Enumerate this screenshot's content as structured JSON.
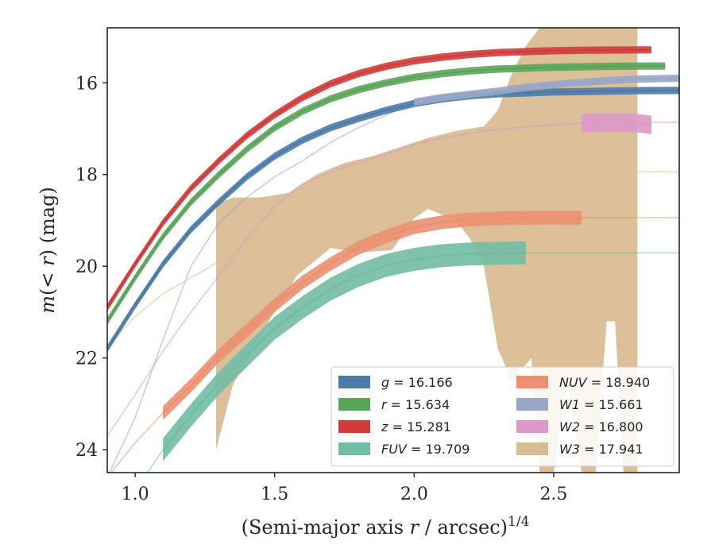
{
  "chart_data": {
    "type": "line",
    "title": "",
    "xlabel": "(Semi-major axis r / arcsec)^1/4",
    "xlabel_main": "(Semi-major axis ",
    "xlabel_r": "r",
    "xlabel_tail": " / arcsec)",
    "xlabel_sup": "1/4",
    "ylabel": "m(<r) (mag)",
    "ylabel_m": "m",
    "ylabel_mid": "(< ",
    "ylabel_r": "r",
    "ylabel_tail": ") (mag)",
    "xlim": [
      0.9,
      2.95
    ],
    "ylim": [
      24.5,
      14.8
    ],
    "y_inverted": true,
    "xticks": [
      1.0,
      1.5,
      2.0,
      2.5
    ],
    "xtick_labels": [
      "1.0",
      "1.5",
      "2.0",
      "2.5"
    ],
    "yticks": [
      16,
      18,
      20,
      22,
      24
    ],
    "ytick_labels": [
      "16",
      "18",
      "20",
      "22",
      "24"
    ],
    "grid": false,
    "legend_position": "lower-right",
    "series": [
      {
        "name": "g = 16.166",
        "sym": "g",
        "eq": "= 16.166",
        "italic": true,
        "color": "#4c7ba8",
        "band_width": 0.08,
        "x": [
          0.9,
          1.0,
          1.1,
          1.2,
          1.3,
          1.4,
          1.5,
          1.6,
          1.7,
          1.8,
          1.9,
          2.0,
          2.1,
          2.2,
          2.3,
          2.4,
          2.5,
          2.6,
          2.7,
          2.8,
          2.95
        ],
        "y": [
          21.8,
          20.85,
          19.95,
          19.2,
          18.6,
          18.05,
          17.6,
          17.25,
          16.98,
          16.78,
          16.6,
          16.45,
          16.35,
          16.28,
          16.24,
          16.22,
          16.2,
          16.19,
          16.18,
          16.17,
          16.166
        ],
        "faint_after": 2.95
      },
      {
        "name": "r = 15.634",
        "sym": "r",
        "eq": "= 15.634",
        "italic": true,
        "color": "#5aa55a",
        "band_width": 0.08,
        "x": [
          0.9,
          1.0,
          1.1,
          1.2,
          1.3,
          1.4,
          1.5,
          1.6,
          1.7,
          1.8,
          1.9,
          2.0,
          2.1,
          2.2,
          2.3,
          2.4,
          2.5,
          2.6,
          2.7,
          2.8,
          2.9
        ],
        "y": [
          21.2,
          20.25,
          19.35,
          18.6,
          18.0,
          17.45,
          16.98,
          16.62,
          16.35,
          16.15,
          16.0,
          15.88,
          15.8,
          15.74,
          15.7,
          15.68,
          15.66,
          15.65,
          15.64,
          15.635,
          15.634
        ],
        "faint_after": 2.95
      },
      {
        "name": "z = 15.281",
        "sym": "z",
        "eq": "= 15.281",
        "italic": true,
        "color": "#d03c3c",
        "band_width": 0.08,
        "x": [
          0.9,
          1.0,
          1.1,
          1.2,
          1.3,
          1.4,
          1.5,
          1.6,
          1.7,
          1.8,
          1.9,
          2.0,
          2.1,
          2.2,
          2.3,
          2.4,
          2.5,
          2.6,
          2.7,
          2.8,
          2.85
        ],
        "y": [
          20.9,
          19.95,
          19.05,
          18.3,
          17.7,
          17.15,
          16.7,
          16.32,
          16.02,
          15.8,
          15.64,
          15.52,
          15.44,
          15.38,
          15.34,
          15.32,
          15.3,
          15.29,
          15.285,
          15.282,
          15.281
        ],
        "faint_after": 2.95
      },
      {
        "name": "FUV = 19.709",
        "sym": "FUV",
        "eq": "= 19.709",
        "italic": true,
        "color": "#72bca4",
        "band_width": 0.25,
        "x": [
          1.1,
          1.2,
          1.3,
          1.4,
          1.5,
          1.6,
          1.7,
          1.8,
          1.9,
          2.0,
          2.1,
          2.2,
          2.3,
          2.4
        ],
        "y": [
          24.0,
          23.25,
          22.55,
          21.95,
          21.35,
          20.9,
          20.5,
          20.2,
          19.98,
          19.85,
          19.77,
          19.73,
          19.715,
          19.709
        ],
        "faint_after": 2.4,
        "faint_x": [
          0.9,
          1.0,
          1.1
        ],
        "faint_y": [
          25.6,
          24.9,
          24.0
        ],
        "tail_y": 19.709
      },
      {
        "name": "NUV = 18.940",
        "sym": "NUV",
        "eq": "= 18.940",
        "italic": true,
        "color": "#eb9070",
        "band_width": 0.15,
        "x": [
          1.1,
          1.2,
          1.3,
          1.4,
          1.5,
          1.6,
          1.7,
          1.8,
          1.9,
          2.0,
          2.1,
          2.2,
          2.3,
          2.4,
          2.5,
          2.6
        ],
        "y": [
          23.2,
          22.6,
          21.95,
          21.4,
          20.85,
          20.35,
          19.95,
          19.6,
          19.35,
          19.15,
          19.04,
          18.98,
          18.955,
          18.945,
          18.942,
          18.94
        ],
        "faint_after": 2.6,
        "faint_x": [
          0.9,
          1.0,
          1.1
        ],
        "faint_y": [
          24.6,
          23.85,
          23.2
        ],
        "tail_y": 18.94
      },
      {
        "name": "W1 = 15.661",
        "sym": "W1",
        "eq": "= 15.661",
        "italic": true,
        "color": "#98a6c8",
        "band_width": 0.08,
        "x": [
          2.0,
          2.1,
          2.2,
          2.3,
          2.4,
          2.5,
          2.6,
          2.7,
          2.8,
          2.95
        ],
        "y": [
          16.42,
          16.32,
          16.25,
          16.18,
          16.1,
          16.04,
          15.99,
          15.95,
          15.92,
          15.9
        ],
        "faint_after": 2.95,
        "faint_x": [
          0.9,
          1.0,
          1.1,
          1.2,
          1.3,
          1.4,
          1.5,
          1.6,
          1.7,
          1.8,
          1.9,
          2.0
        ],
        "faint_y": [
          24.6,
          23.3,
          21.6,
          20.0,
          19.05,
          18.5,
          18.05,
          17.7,
          17.3,
          16.98,
          16.7,
          16.42
        ]
      },
      {
        "name": "W2 = 16.800",
        "sym": "W2",
        "eq": "= 16.800",
        "italic": true,
        "color": "#dc98c8",
        "band_width": 0.2,
        "x": [
          2.6,
          2.7,
          2.8,
          2.85
        ],
        "y": [
          16.88,
          16.86,
          16.88,
          16.92
        ],
        "faint_after": 2.95,
        "faint_x": [
          0.9,
          1.0,
          1.1,
          1.2,
          1.3,
          1.4,
          1.5,
          1.6,
          1.7,
          1.8,
          1.9,
          2.0,
          2.1,
          2.2,
          2.3,
          2.4,
          2.5,
          2.6
        ],
        "faint_y": [
          23.7,
          22.8,
          21.85,
          21.0,
          20.2,
          19.4,
          18.7,
          18.2,
          17.95,
          17.75,
          17.55,
          17.35,
          17.2,
          17.1,
          17.02,
          16.96,
          16.92,
          16.88
        ],
        "tail_y": 16.86
      },
      {
        "name": "W3 = 17.941",
        "sym": "W3",
        "eq": "= 17.941",
        "italic": true,
        "color": "#d8bc94",
        "band_width": 0,
        "is_area": true,
        "upper": [
          [
            1.29,
            18.65
          ],
          [
            1.35,
            18.5
          ],
          [
            1.45,
            18.5
          ],
          [
            1.55,
            18.4
          ],
          [
            1.65,
            18.0
          ],
          [
            1.75,
            17.75
          ],
          [
            1.85,
            17.6
          ],
          [
            1.95,
            17.4
          ],
          [
            2.05,
            17.2
          ],
          [
            2.15,
            17.05
          ],
          [
            2.25,
            16.95
          ],
          [
            2.3,
            16.6
          ],
          [
            2.35,
            15.8
          ],
          [
            2.4,
            15.2
          ],
          [
            2.45,
            14.8
          ],
          [
            2.53,
            14.8
          ],
          [
            2.6,
            14.8
          ],
          [
            2.65,
            14.8
          ],
          [
            2.8,
            14.8
          ]
        ],
        "lower": [
          [
            2.8,
            24.5
          ],
          [
            2.75,
            24.5
          ],
          [
            2.72,
            21.2
          ],
          [
            2.69,
            21.2
          ],
          [
            2.65,
            24.5
          ],
          [
            2.6,
            24.5
          ],
          [
            2.55,
            22.5
          ],
          [
            2.5,
            24.5
          ],
          [
            2.45,
            24.5
          ],
          [
            2.42,
            22.0
          ],
          [
            2.35,
            22.5
          ],
          [
            2.3,
            21.8
          ],
          [
            2.25,
            20.0
          ],
          [
            2.2,
            19.4
          ],
          [
            2.15,
            19.0
          ],
          [
            2.05,
            18.75
          ],
          [
            2.0,
            18.95
          ],
          [
            1.92,
            19.65
          ],
          [
            1.8,
            19.7
          ],
          [
            1.7,
            19.6
          ],
          [
            1.58,
            20.2
          ],
          [
            1.5,
            21.0
          ],
          [
            1.42,
            21.8
          ],
          [
            1.35,
            22.6
          ],
          [
            1.29,
            24.0
          ]
        ],
        "faint_x": [
          0.9,
          1.0,
          1.1,
          1.2,
          1.3,
          1.4,
          1.5,
          1.6,
          1.7,
          1.8,
          1.9,
          2.0,
          2.2,
          2.4,
          2.6,
          2.8,
          2.95
        ],
        "faint_y": [
          21.75,
          21.1,
          20.6,
          20.25,
          19.9,
          19.6,
          19.3,
          19.05,
          18.8,
          18.55,
          18.3,
          18.05,
          17.96,
          17.945,
          17.942,
          17.941,
          17.941
        ],
        "faint_after": 2.95
      }
    ]
  }
}
